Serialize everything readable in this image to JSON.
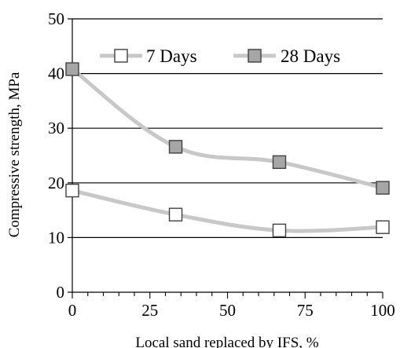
{
  "chart_data": {
    "type": "line",
    "xlabel": "Local sand replaced by IFS, %",
    "ylabel": "Compressive strength, MPa",
    "xlim": [
      0,
      100
    ],
    "ylim": [
      0,
      50
    ],
    "x_ticks": [
      "0",
      "25",
      "50",
      "75",
      "100"
    ],
    "y_ticks": [
      "0",
      "10",
      "20",
      "30",
      "40",
      "50"
    ],
    "grid": "horizontal",
    "legend_position": "top",
    "series": [
      {
        "name": "7 Days",
        "marker": "open-square",
        "x": [
          0,
          33.3,
          66.7,
          100
        ],
        "y": [
          18.6,
          14.2,
          11.3,
          11.9
        ]
      },
      {
        "name": "28 Days",
        "marker": "filled-square",
        "x": [
          0,
          33.3,
          66.7,
          100
        ],
        "y": [
          40.8,
          26.6,
          23.8,
          19.1
        ]
      }
    ],
    "colors": {
      "line": "#c8c8c8",
      "marker_open_fill": "#ffffff",
      "marker_filled_fill": "#a6a6a6",
      "marker_stroke": "#404040",
      "axis": "#000000",
      "grid": "#000000"
    }
  }
}
